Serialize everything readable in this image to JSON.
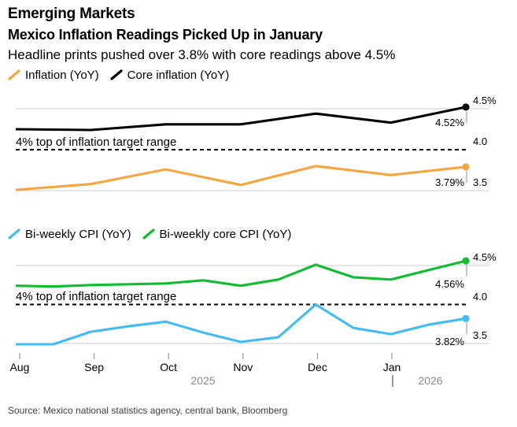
{
  "header": {
    "eyebrow": "Emerging Markets",
    "title": "Mexico Inflation Readings Picked Up in January",
    "subtitle": "Headline prints pushed over 3.8% with core readings above 4.5%"
  },
  "source": "Source: Mexico national statistics agency, central bank, Bloomberg",
  "xaxis": {
    "months": [
      "Aug",
      "Sep",
      "Oct",
      "Nov",
      "Dec",
      "Jan"
    ],
    "years": [
      "2025",
      "2026"
    ]
  },
  "colors": {
    "inflation_orange": "#F6A63F",
    "core_black": "#000000",
    "biweekly_blue": "#41BCF1",
    "biweekly_green": "#0FBE2E",
    "gridline": "#D8D8D8",
    "threshold_dash": "#000000",
    "tick_gray": "#999999",
    "year_gray": "#8a8a8a"
  },
  "chart_data": [
    {
      "type": "line",
      "title": "Monthly inflation vs core inflation",
      "x_frequency": "monthly",
      "x_range": [
        "Aug 2025",
        "Jan 2026"
      ],
      "ylim": [
        3.4,
        4.6
      ],
      "grid": "horizontal",
      "legend_position": "top",
      "yticks": [
        {
          "label": "4.5%",
          "value": 4.5
        },
        {
          "label": "4.0",
          "value": 4.0
        },
        {
          "label": "3.5",
          "value": 3.5
        }
      ],
      "threshold": {
        "value": 4.0,
        "label": "4% top of inflation target range"
      },
      "series": [
        {
          "name": "Inflation (YoY)",
          "color": "#F6A63F",
          "values": [
            3.51,
            3.58,
            3.76,
            3.57,
            3.8,
            3.69,
            3.79
          ],
          "end_label": "3.79%"
        },
        {
          "name": "Core inflation (YoY)",
          "color": "#000000",
          "values": [
            4.25,
            4.24,
            4.31,
            4.31,
            4.44,
            4.33,
            4.52
          ],
          "end_label": "4.52%"
        }
      ]
    },
    {
      "type": "line",
      "title": "Bi-weekly CPI vs bi-weekly core CPI",
      "x_frequency": "bi-weekly",
      "x_range": [
        "Aug 2025",
        "Jan 2026"
      ],
      "ylim": [
        3.4,
        4.6
      ],
      "grid": "horizontal",
      "legend_position": "top",
      "yticks": [
        {
          "label": "4.5%",
          "value": 4.5
        },
        {
          "label": "4.0",
          "value": 4.0
        },
        {
          "label": "3.5",
          "value": 3.5
        }
      ],
      "threshold": {
        "value": 4.0,
        "label": "4% top of inflation target range"
      },
      "series": [
        {
          "name": "Bi-weekly CPI (YoY)",
          "color": "#41BCF1",
          "values": [
            3.49,
            3.49,
            3.65,
            3.72,
            3.78,
            3.64,
            3.52,
            3.58,
            4.0,
            3.7,
            3.62,
            3.74,
            3.82
          ],
          "end_label": "3.82%"
        },
        {
          "name": "Bi-weekly core CPI (YoY)",
          "color": "#0FBE2E",
          "values": [
            4.24,
            4.23,
            4.25,
            4.26,
            4.27,
            4.31,
            4.24,
            4.32,
            4.51,
            4.35,
            4.32,
            4.44,
            4.56
          ],
          "end_label": "4.56%"
        }
      ]
    }
  ]
}
